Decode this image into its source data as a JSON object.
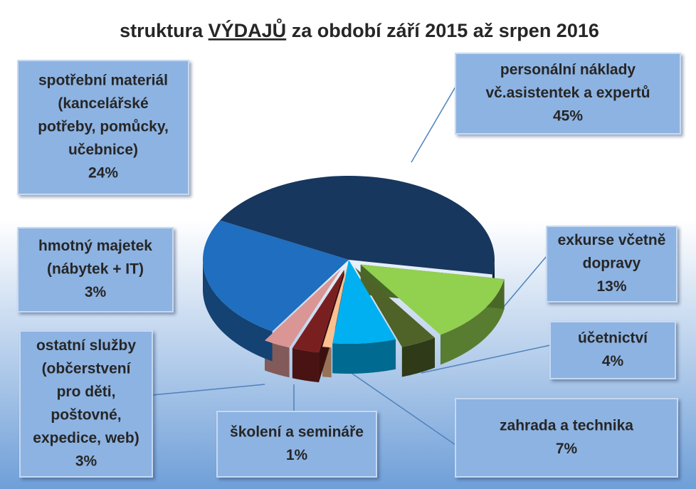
{
  "chart_data": {
    "type": "pie3d",
    "title_parts": [
      "struktura ",
      "VÝDAJŮ",
      " za období září 2015 až srpen 2016"
    ],
    "categories": [
      [
        "personální náklady",
        "vč.asistentek a expertů"
      ],
      [
        "exkurse včetně",
        "dopravy"
      ],
      [
        "účetnictví"
      ],
      [
        "zahrada a technika"
      ],
      [
        "školení a semináře"
      ],
      [
        "ostatní služby",
        "(občerstvení",
        "pro děti,",
        "poštovné,",
        "expedice, web)"
      ],
      [
        "hmotný majetek",
        "(nábytek + IT)"
      ],
      [
        "spotřební materiál",
        "(kancelářské",
        "potřeby, pomůcky,",
        "učebnice)"
      ]
    ],
    "values": [
      45,
      13,
      4,
      7,
      1,
      3,
      3,
      24
    ],
    "value_labels": [
      "45%",
      "13%",
      "4%",
      "7%",
      "1%",
      "3%",
      "3%",
      "24%"
    ],
    "colors": [
      "#17375e",
      "#92d050",
      "#4f6228",
      "#00b0f0",
      "#fac090",
      "#7a1f1f",
      "#d99694",
      "#1f6ebf"
    ]
  }
}
